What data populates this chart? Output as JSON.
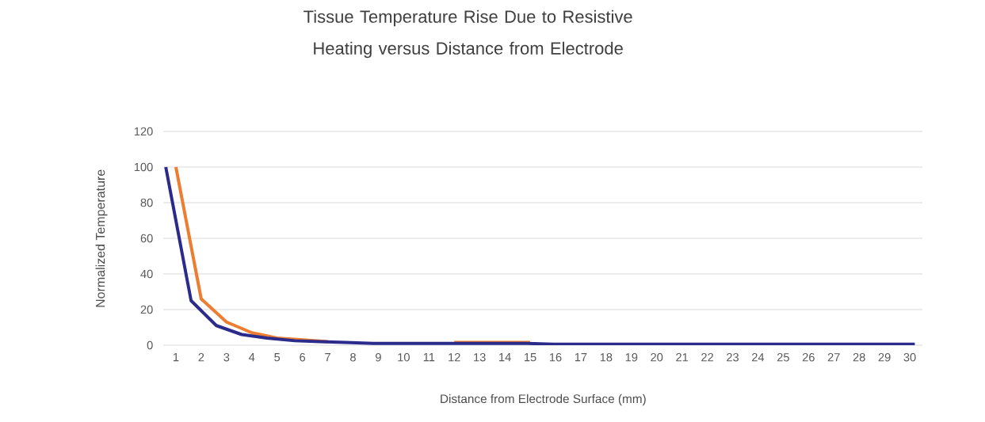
{
  "chart_data": {
    "type": "line",
    "title": "Tissue Temperature Rise Due to Resistive Heating versus Distance from Electrode",
    "xlabel": "Distance from Electrode Surface (mm)",
    "ylabel": "Normalized  Temperature",
    "xlim": [
      0.5,
      30.5
    ],
    "xticks": [
      1,
      2,
      3,
      4,
      5,
      6,
      7,
      8,
      9,
      10,
      11,
      12,
      13,
      14,
      15,
      16,
      17,
      18,
      19,
      20,
      21,
      22,
      23,
      24,
      25,
      26,
      27,
      28,
      29,
      30
    ],
    "ylim": [
      0,
      120
    ],
    "yticks": [
      0,
      20,
      40,
      60,
      80,
      100,
      120
    ],
    "grid": "y",
    "marker": "none",
    "line_style": "solid",
    "series": [
      {
        "color": "#ed7d31",
        "x": [
          1,
          2,
          3,
          4,
          5,
          6,
          7,
          8,
          9,
          10,
          11,
          12,
          13,
          14,
          15
        ],
        "values": [
          100,
          26,
          13,
          7,
          4,
          3,
          2,
          null,
          null,
          null,
          null,
          1.5,
          1.5,
          1.5,
          1.5
        ]
      },
      {
        "color": "#2b2b8c",
        "x": [
          0.6,
          1.6,
          2.6,
          3.6,
          4.6,
          5.7,
          6.7,
          7.7,
          8.8,
          9.8,
          10.8,
          11.8,
          12.8,
          13.8,
          14.9,
          15.9,
          16.9,
          17.9,
          18.9,
          20.0,
          21.0,
          22.0,
          23.0,
          24.0,
          25.1,
          26.1,
          27.1,
          28.1,
          29.1,
          30.2
        ],
        "values": [
          100,
          25,
          11,
          6,
          4,
          2.5,
          2,
          1.5,
          1,
          1,
          1,
          1,
          1,
          1,
          1,
          0.5,
          0.5,
          0.5,
          0.5,
          0.5,
          0.5,
          0.5,
          0.5,
          0.5,
          0.5,
          0.5,
          0.5,
          0.5,
          0.5,
          0.5
        ]
      }
    ]
  }
}
